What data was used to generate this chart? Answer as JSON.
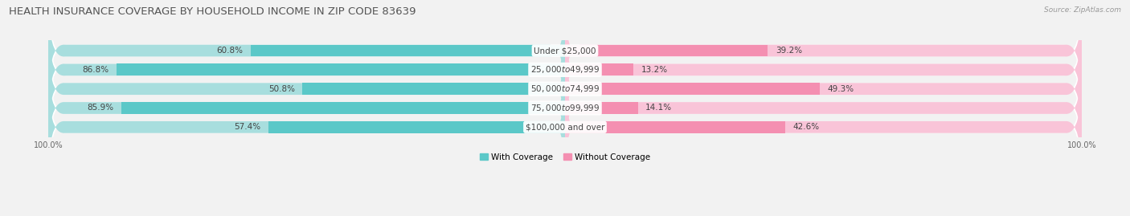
{
  "title": "HEALTH INSURANCE COVERAGE BY HOUSEHOLD INCOME IN ZIP CODE 83639",
  "source": "Source: ZipAtlas.com",
  "categories": [
    "Under $25,000",
    "$25,000 to $49,999",
    "$50,000 to $74,999",
    "$75,000 to $99,999",
    "$100,000 and over"
  ],
  "with_coverage": [
    60.8,
    86.8,
    50.8,
    85.9,
    57.4
  ],
  "without_coverage": [
    39.2,
    13.2,
    49.3,
    14.1,
    42.6
  ],
  "color_with": "#5bc8c8",
  "color_without": "#f48fb1",
  "color_with_light": "#a8dede",
  "color_without_light": "#f9c4d8",
  "bg_color": "#f2f2f2",
  "bar_bg_color": "#e0e0e0",
  "row_bg_color": "#e8e8e8",
  "title_fontsize": 9.5,
  "label_fontsize": 7.5,
  "pct_fontsize": 7.5,
  "axis_label_fontsize": 7,
  "legend_fontsize": 7.5
}
